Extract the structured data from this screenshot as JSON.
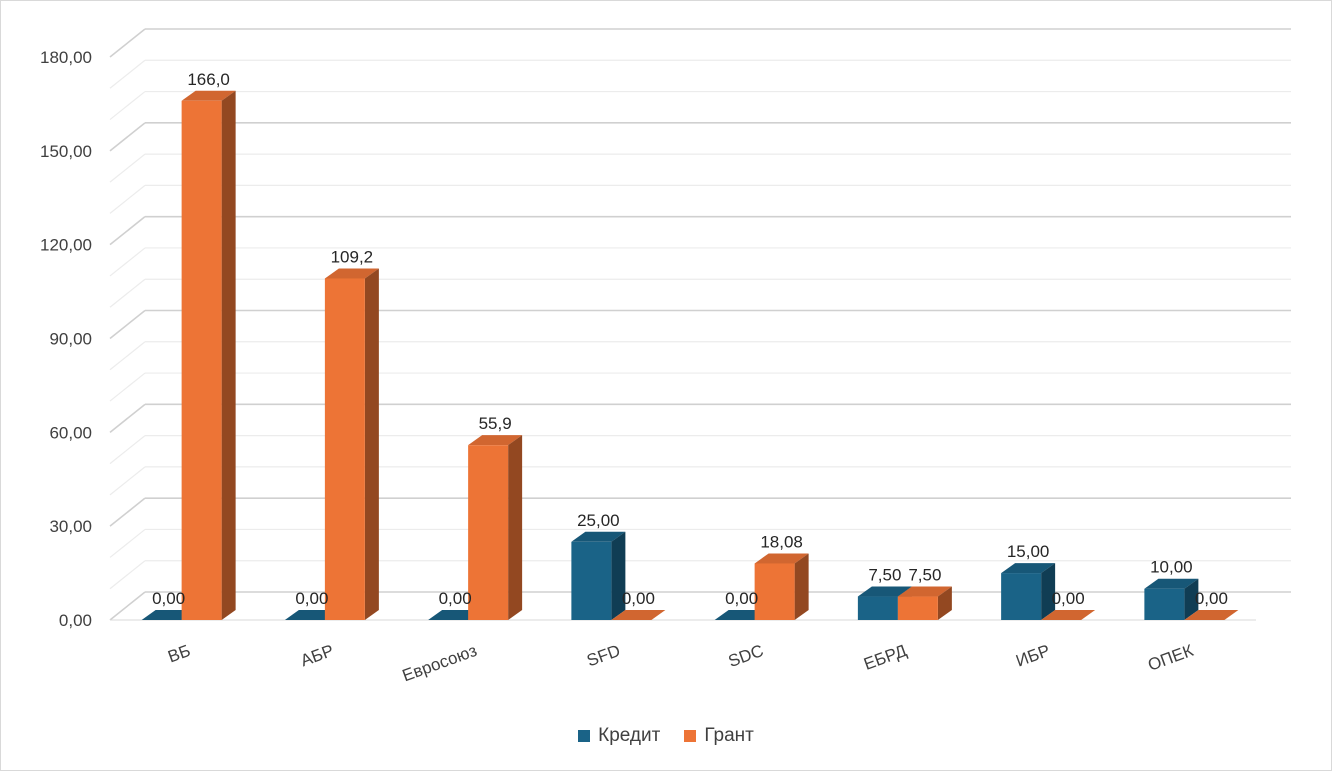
{
  "chart_data": {
    "type": "bar",
    "categories": [
      "ВБ",
      "АБР",
      "Евросоюз",
      "SFD",
      "SDC",
      "ЕБРД",
      "ИБР",
      "ОПЕК"
    ],
    "series": [
      {
        "name": "Кредит",
        "color": "#1a6387",
        "values": [
          0,
          0,
          0,
          25,
          0,
          7.5,
          15,
          10
        ],
        "labels": [
          "0,00",
          "0,00",
          "0,00",
          "25,00",
          "0,00",
          "7,50",
          "15,00",
          "10,00"
        ]
      },
      {
        "name": "Грант",
        "color": "#ed7436",
        "values": [
          166.0,
          109.2,
          55.9,
          0,
          18.08,
          7.5,
          0,
          0
        ],
        "labels": [
          "166,0",
          "109,2",
          "55,9",
          "0,00",
          "18,08",
          "7,50",
          "0,00",
          "0,00"
        ]
      }
    ],
    "yticks": [
      "0,00",
      "30,00",
      "60,00",
      "90,00",
      "120,00",
      "150,00",
      "180,00"
    ],
    "ylim": [
      0,
      180
    ],
    "grid": true,
    "legend": "bottom",
    "style": "3d-clustered-column"
  }
}
